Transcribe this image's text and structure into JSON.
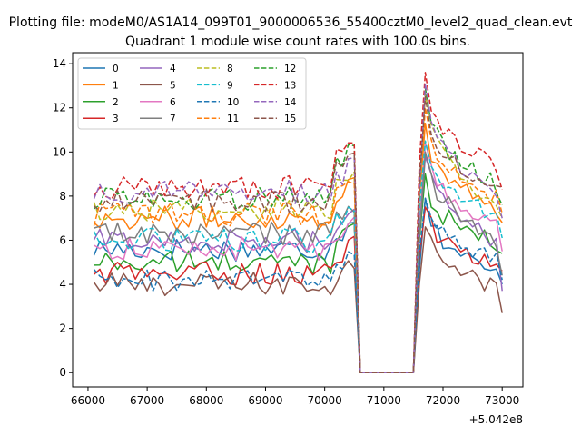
{
  "chart_data": {
    "type": "line",
    "suptitle": "Plotting file: modeM0/AS1A14_099T01_9000006536_55400cztM0_level2_quad_clean.evt",
    "title": "Quadrant 1 module wise count rates with 100.0s bins.",
    "xlabel": "",
    "ylabel": "",
    "x_offset_label": "+5.042e8",
    "xlim": [
      65740,
      73350
    ],
    "ylim": [
      -0.65,
      14.5
    ],
    "xticks": [
      66000,
      67000,
      68000,
      69000,
      70000,
      71000,
      72000,
      73000
    ],
    "xtick_labels": [
      "66000",
      "67000",
      "68000",
      "69000",
      "70000",
      "71000",
      "72000",
      "73000"
    ],
    "yticks": [
      0,
      2,
      4,
      6,
      8,
      10,
      12,
      14
    ],
    "ytick_labels": [
      "0",
      "2",
      "4",
      "6",
      "8",
      "10",
      "12",
      "14"
    ],
    "bin_s": 100,
    "seg1": {
      "start": 66100,
      "end": 70500
    },
    "gap": {
      "start": 70600,
      "end": 71500
    },
    "seg2": {
      "start": 71600,
      "end": 73000
    },
    "legend": {
      "placement": "upper-left",
      "columns": 4
    },
    "series": [
      {
        "name": "0",
        "color": "#1f77b4",
        "dash": false,
        "base": 5.6,
        "rising": 6.3,
        "peak": 7.9,
        "tail": 4.4,
        "end": 4.0
      },
      {
        "name": "1",
        "color": "#ff7f0e",
        "dash": false,
        "base": 7.0,
        "rising": 8.0,
        "peak": 11.3,
        "tail": 7.6,
        "end": 6.8
      },
      {
        "name": "2",
        "color": "#2ca02c",
        "dash": false,
        "base": 5.0,
        "rising": 6.2,
        "peak": 9.0,
        "tail": 5.8,
        "end": 5.4
      },
      {
        "name": "3",
        "color": "#d62728",
        "dash": false,
        "base": 4.5,
        "rising": 5.3,
        "peak": 7.5,
        "tail": 5.0,
        "end": 4.6
      },
      {
        "name": "4",
        "color": "#9467bd",
        "dash": false,
        "base": 6.0,
        "rising": 6.8,
        "peak": 9.8,
        "tail": 6.0,
        "end": 3.7
      },
      {
        "name": "5",
        "color": "#8c564b",
        "dash": false,
        "base": 4.0,
        "rising": 4.4,
        "peak": 6.6,
        "tail": 3.8,
        "end": 2.7
      },
      {
        "name": "6",
        "color": "#e377c2",
        "dash": false,
        "base": 5.6,
        "rising": 6.4,
        "peak": 10.4,
        "tail": 6.5,
        "end": 5.5
      },
      {
        "name": "7",
        "color": "#7f7f7f",
        "dash": false,
        "base": 6.3,
        "rising": 6.9,
        "peak": 10.0,
        "tail": 6.0,
        "end": 4.4
      },
      {
        "name": "8",
        "color": "#bcbd22",
        "dash": true,
        "base": 7.4,
        "rising": 8.4,
        "peak": 12.6,
        "tail": 7.7,
        "end": 7.0
      },
      {
        "name": "9",
        "color": "#17becf",
        "dash": true,
        "base": 6.0,
        "rising": 6.9,
        "peak": 10.5,
        "tail": 7.2,
        "end": 6.1
      },
      {
        "name": "10",
        "color": "#1f77b4",
        "dash": true,
        "base": 4.2,
        "rising": 4.6,
        "peak": 7.9,
        "tail": 5.2,
        "end": 4.2
      },
      {
        "name": "11",
        "color": "#ff7f0e",
        "dash": true,
        "base": 7.2,
        "rising": 8.1,
        "peak": 12.0,
        "tail": 7.9,
        "end": 7.2
      },
      {
        "name": "12",
        "color": "#2ca02c",
        "dash": true,
        "base": 7.9,
        "rising": 9.5,
        "peak": 12.9,
        "tail": 8.5,
        "end": 7.6
      },
      {
        "name": "13",
        "color": "#d62728",
        "dash": true,
        "base": 8.4,
        "rising": 9.9,
        "peak": 13.6,
        "tail": 9.3,
        "end": 8.3
      },
      {
        "name": "14",
        "color": "#9467bd",
        "dash": true,
        "base": 8.2,
        "rising": 8.9,
        "peak": 13.1,
        "tail": 8.0,
        "end": 7.0
      },
      {
        "name": "15",
        "color": "#8c564b",
        "dash": true,
        "base": 7.8,
        "rising": 9.4,
        "peak": 12.5,
        "tail": 8.3,
        "end": 8.4
      }
    ]
  }
}
